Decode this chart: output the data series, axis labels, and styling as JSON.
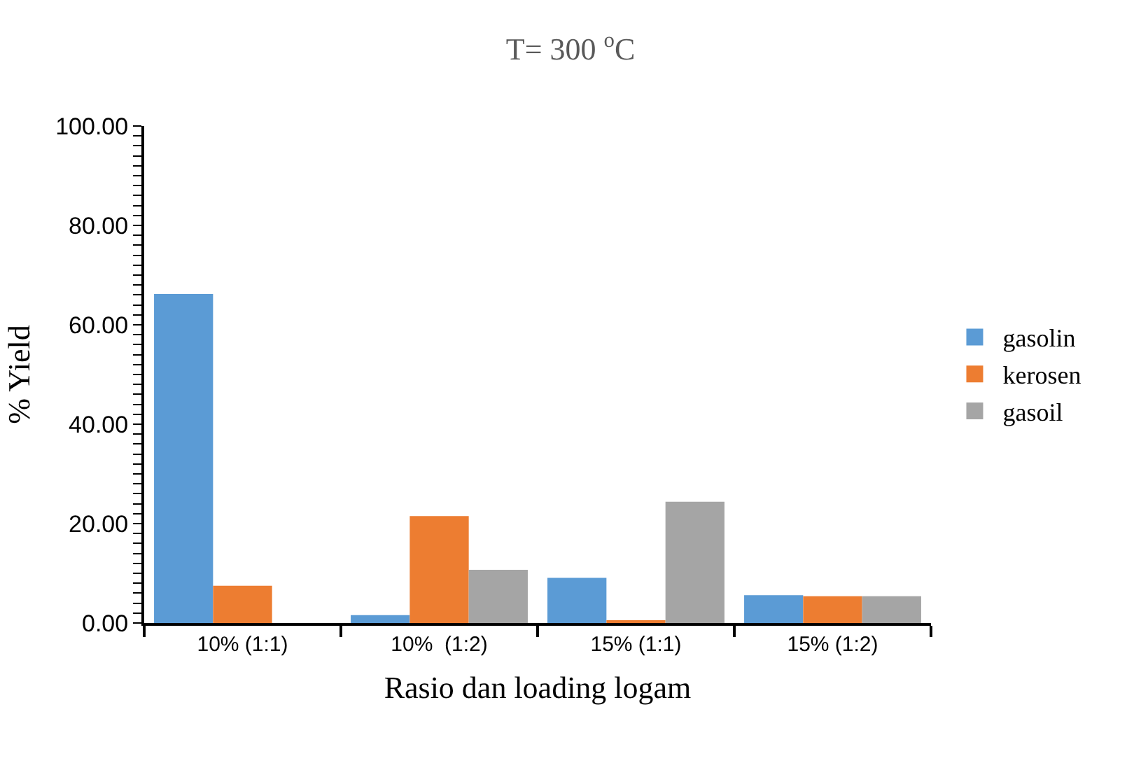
{
  "chart_data": {
    "type": "bar",
    "title": "T= 300 $^{o}$C",
    "xlabel": "Rasio dan loading logam",
    "ylabel": "% Yield",
    "categories": [
      "10% (1:1)",
      "10%  (1:2)",
      "15% (1:1)",
      "15% (1:2)"
    ],
    "series": [
      {
        "name": "gasolin",
        "color": "#5b9bd5",
        "values": [
          66.2,
          1.6,
          9.1,
          5.6
        ]
      },
      {
        "name": "kerosen",
        "color": "#ed7d31",
        "values": [
          7.5,
          21.5,
          0.3,
          5.4
        ]
      },
      {
        "name": "gasoil",
        "color": "#a5a5a5",
        "values": [
          0,
          10.7,
          24.4,
          5.4
        ]
      }
    ],
    "ylim": [
      0,
      100
    ],
    "yticks": [
      {
        "value": 0,
        "label": "0.00"
      },
      {
        "value": 2,
        "label": null
      },
      {
        "value": 4,
        "label": null
      },
      {
        "value": 6,
        "label": null
      },
      {
        "value": 8,
        "label": null
      },
      {
        "value": 10,
        "label": null
      },
      {
        "value": 12,
        "label": null
      },
      {
        "value": 14,
        "label": null
      },
      {
        "value": 16,
        "label": null
      },
      {
        "value": 18,
        "label": null
      },
      {
        "value": 20,
        "label": "20.00"
      },
      {
        "value": 22,
        "label": null
      },
      {
        "value": 24,
        "label": null
      },
      {
        "value": 26,
        "label": null
      },
      {
        "value": 28,
        "label": null
      },
      {
        "value": 30,
        "label": null
      },
      {
        "value": 32,
        "label": null
      },
      {
        "value": 34,
        "label": null
      },
      {
        "value": 36,
        "label": null
      },
      {
        "value": 38,
        "label": null
      },
      {
        "value": 40,
        "label": "40.00"
      },
      {
        "value": 42,
        "label": null
      },
      {
        "value": 44,
        "label": null
      },
      {
        "value": 46,
        "label": null
      },
      {
        "value": 48,
        "label": null
      },
      {
        "value": 50,
        "label": null
      },
      {
        "value": 52,
        "label": null
      },
      {
        "value": 54,
        "label": null
      },
      {
        "value": 56,
        "label": null
      },
      {
        "value": 58,
        "label": null
      },
      {
        "value": 60,
        "label": "60.00"
      },
      {
        "value": 62,
        "label": null
      },
      {
        "value": 64,
        "label": null
      },
      {
        "value": 66,
        "label": null
      },
      {
        "value": 68,
        "label": null
      },
      {
        "value": 70,
        "label": null
      },
      {
        "value": 72,
        "label": null
      },
      {
        "value": 74,
        "label": null
      },
      {
        "value": 76,
        "label": null
      },
      {
        "value": 78,
        "label": null
      },
      {
        "value": 80,
        "label": "80.00"
      },
      {
        "value": 82,
        "label": null
      },
      {
        "value": 84,
        "label": null
      },
      {
        "value": 86,
        "label": null
      },
      {
        "value": 88,
        "label": null
      },
      {
        "value": 90,
        "label": null
      },
      {
        "value": 92,
        "label": null
      },
      {
        "value": 94,
        "label": null
      },
      {
        "value": 96,
        "label": null
      },
      {
        "value": 98,
        "label": null
      },
      {
        "value": 100,
        "label": "100.00"
      }
    ],
    "grid": false,
    "legend": "right"
  }
}
